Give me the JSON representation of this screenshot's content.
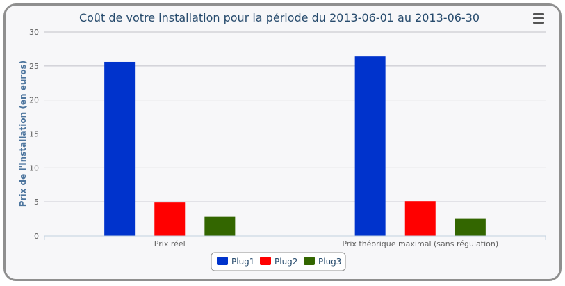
{
  "icons": {
    "menu": "hamburger-menu-icon"
  },
  "chart_data": {
    "type": "bar",
    "title": "Coût de votre installation pour la période du 2013-06-01 au 2013-06-30",
    "xlabel": "",
    "ylabel": "Prix de l'Installation (en euros)",
    "ylim": [
      0,
      30
    ],
    "yticks": [
      0,
      5,
      10,
      15,
      20,
      25,
      30
    ],
    "categories": [
      "Prix réel",
      "Prix théorique maximal (sans régulation)"
    ],
    "series": [
      {
        "name": "Plug1",
        "color": "#0033cc",
        "values": [
          25.6,
          26.4
        ]
      },
      {
        "name": "Plug2",
        "color": "#ff0000",
        "values": [
          4.9,
          5.1
        ]
      },
      {
        "name": "Plug3",
        "color": "#336600",
        "values": [
          2.8,
          2.6
        ]
      }
    ],
    "grid": true,
    "legend_position": "bottom-center"
  }
}
